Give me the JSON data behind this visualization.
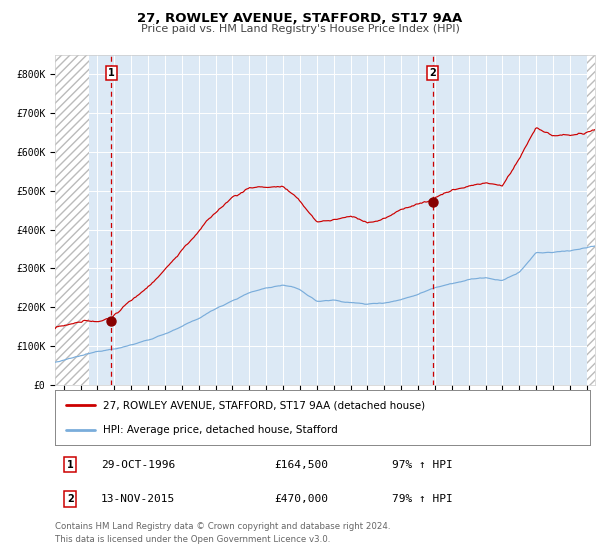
{
  "title": "27, ROWLEY AVENUE, STAFFORD, ST17 9AA",
  "subtitle": "Price paid vs. HM Land Registry's House Price Index (HPI)",
  "title_fontsize": 9.5,
  "subtitle_fontsize": 8,
  "xlim": [
    1993.5,
    2025.5
  ],
  "ylim": [
    0,
    850000
  ],
  "yticks": [
    0,
    100000,
    200000,
    300000,
    400000,
    500000,
    600000,
    700000,
    800000
  ],
  "ytick_labels": [
    "£0",
    "£100K",
    "£200K",
    "£300K",
    "£400K",
    "£500K",
    "£600K",
    "£700K",
    "£800K"
  ],
  "xtick_years": [
    1994,
    1995,
    1996,
    1997,
    1998,
    1999,
    2000,
    2001,
    2002,
    2003,
    2004,
    2005,
    2006,
    2007,
    2008,
    2009,
    2010,
    2011,
    2012,
    2013,
    2014,
    2015,
    2016,
    2017,
    2018,
    2019,
    2020,
    2021,
    2022,
    2023,
    2024,
    2025
  ],
  "hatch_left_end": 1995.5,
  "hatch_right_start": 2025.0,
  "bg_color": "#dce9f5",
  "grid_color": "#ffffff",
  "marker1_x": 1996.83,
  "marker1_y": 164500,
  "marker2_x": 2015.87,
  "marker2_y": 470000,
  "vline1_x": 1996.83,
  "vline2_x": 2015.87,
  "red_line_color": "#cc0000",
  "blue_line_color": "#7aaddb",
  "marker_color": "#880000",
  "vline_color": "#cc0000",
  "legend_label_red": "27, ROWLEY AVENUE, STAFFORD, ST17 9AA (detached house)",
  "legend_label_blue": "HPI: Average price, detached house, Stafford",
  "annotation1_label": "1",
  "annotation1_date": "29-OCT-1996",
  "annotation1_price": "£164,500",
  "annotation1_hpi": "97% ↑ HPI",
  "annotation2_label": "2",
  "annotation2_date": "13-NOV-2015",
  "annotation2_price": "£470,000",
  "annotation2_hpi": "79% ↑ HPI",
  "footer": "Contains HM Land Registry data © Crown copyright and database right 2024.\nThis data is licensed under the Open Government Licence v3.0."
}
